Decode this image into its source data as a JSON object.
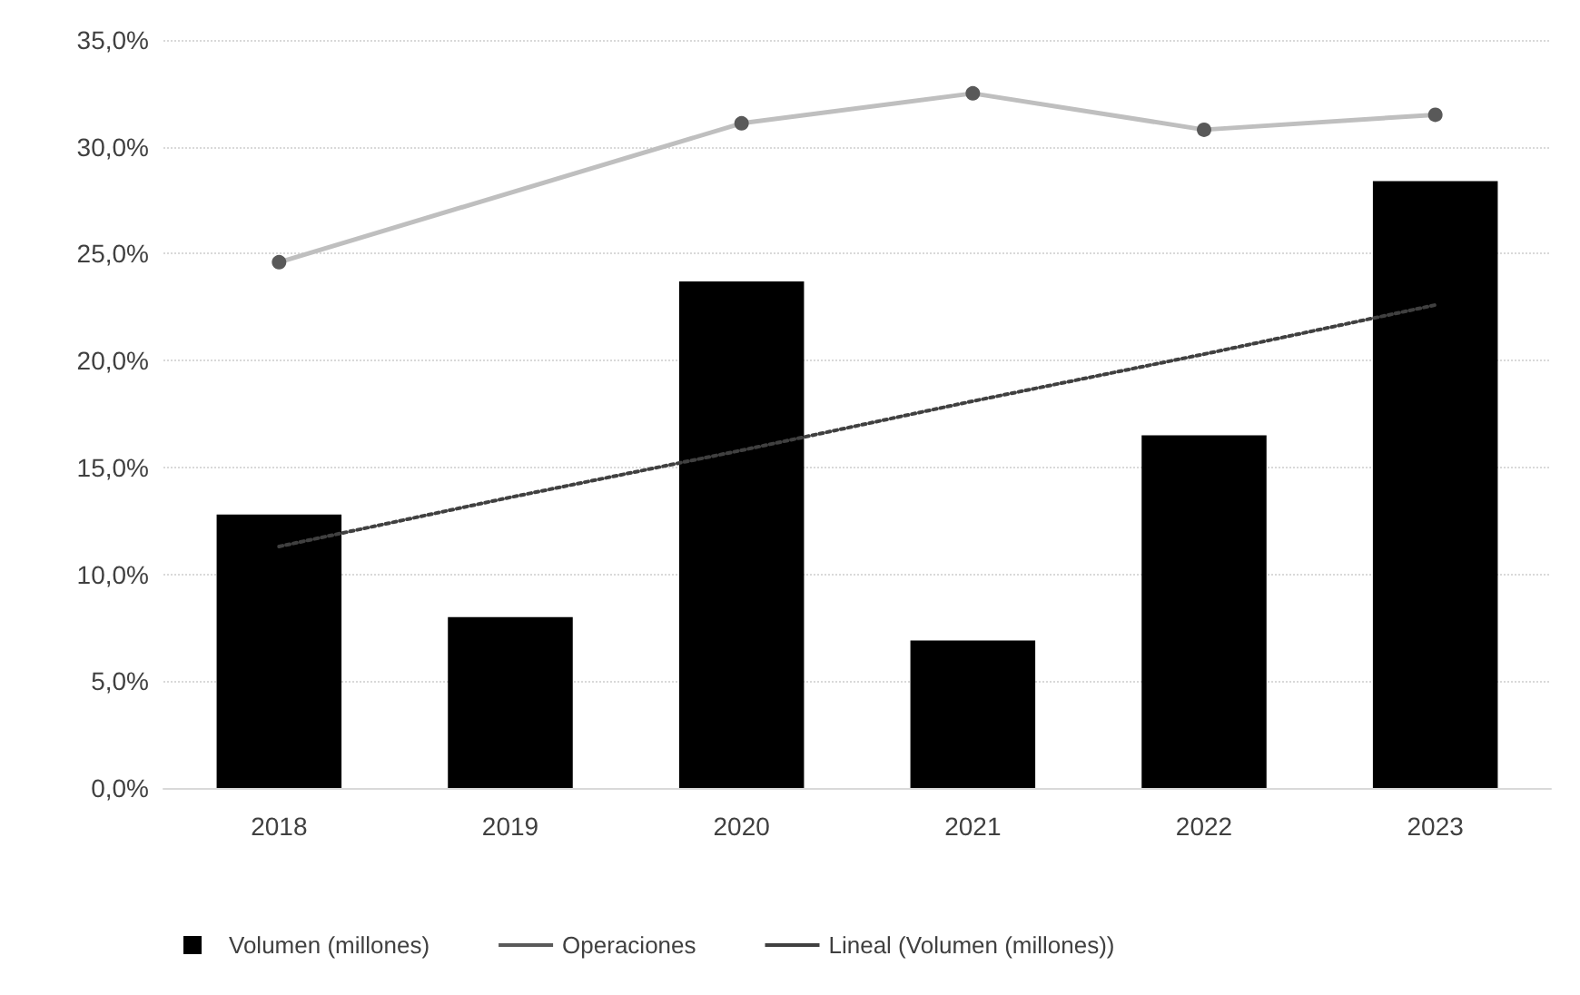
{
  "chart_data": {
    "type": "bar",
    "categories": [
      "2018",
      "2019",
      "2020",
      "2021",
      "2022",
      "2023"
    ],
    "series": [
      {
        "name": "Volumen (millones)",
        "color": "#000000",
        "values": [
          12.8,
          8.0,
          23.7,
          6.9,
          16.5,
          28.4
        ]
      },
      {
        "name": "Operaciones",
        "type": "line",
        "color": "#bfbfbf",
        "marker": "circle",
        "line_style": "solid",
        "values": [
          24.6,
          null,
          31.1,
          32.5,
          30.8,
          31.5
        ]
      },
      {
        "name": "Lineal (Volumen (millones))",
        "type": "line",
        "color": "#404040",
        "marker": "none",
        "line_style": "dotted",
        "values": [
          11.3,
          13.6,
          15.8,
          18.1,
          20.3,
          22.6
        ]
      }
    ],
    "ylim": [
      0,
      35
    ],
    "yticks": [
      {
        "value": 0,
        "label": "0,0%"
      },
      {
        "value": 5,
        "label": "5,0%"
      },
      {
        "value": 10,
        "label": "10,0%"
      },
      {
        "value": 15,
        "label": "15,0%"
      },
      {
        "value": 20,
        "label": "20,0%"
      },
      {
        "value": 25,
        "label": "25,0%"
      },
      {
        "value": 30,
        "label": "30,0%"
      },
      {
        "value": 35,
        "label": "35,0%"
      }
    ],
    "grid": "y",
    "legend": "bottom left"
  }
}
